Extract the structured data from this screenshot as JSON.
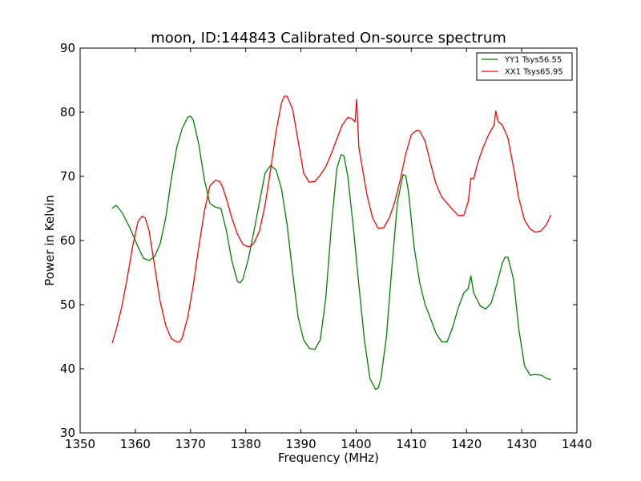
{
  "chart_data": {
    "type": "line",
    "title": "moon, ID:144843 Calibrated On-source spectrum",
    "xlabel": "Frequency (MHz)",
    "ylabel": "Power in Kelvin",
    "xlim": [
      1350,
      1440
    ],
    "ylim": [
      30,
      90
    ],
    "xticks": [
      1350,
      1360,
      1370,
      1380,
      1390,
      1400,
      1410,
      1420,
      1430,
      1440
    ],
    "yticks": [
      30,
      40,
      50,
      60,
      70,
      80,
      90
    ],
    "legend_position": "top-right",
    "series": [
      {
        "name": "YY1 Tsys56.55",
        "color": "#008000",
        "x": [
          1355.8,
          1356.5,
          1357.5,
          1359,
          1360.5,
          1361.5,
          1362.5,
          1363.5,
          1364.5,
          1365.5,
          1366.5,
          1367.5,
          1368.5,
          1369.5,
          1370,
          1370.5,
          1371.5,
          1372.5,
          1373.5,
          1374.5,
          1375.5,
          1376.5,
          1377.5,
          1378.5,
          1379,
          1379.5,
          1380.5,
          1381.5,
          1382.5,
          1383.5,
          1384.5,
          1385.5,
          1386.5,
          1387.5,
          1388.5,
          1389.5,
          1390.5,
          1391.5,
          1392.5,
          1393.5,
          1394.5,
          1395.5,
          1396.5,
          1397.3,
          1397.8,
          1398.5,
          1399.5,
          1400.5,
          1401.5,
          1402.5,
          1403.5,
          1404,
          1404.5,
          1405.5,
          1406.5,
          1407.5,
          1408.5,
          1409,
          1409.5,
          1410.5,
          1411.5,
          1412.5,
          1413.5,
          1414.5,
          1415.5,
          1416.5,
          1417.5,
          1418.5,
          1419.5,
          1420.3,
          1420.8,
          1421.3,
          1422.5,
          1423.5,
          1424.5,
          1425.5,
          1426.5,
          1427,
          1427.5,
          1428.5,
          1429.5,
          1430.5,
          1431.5,
          1432.5,
          1433.5,
          1434.5,
          1435.3
        ],
        "values": [
          65,
          65.5,
          64.5,
          62,
          59,
          57.2,
          56.9,
          57.5,
          59.5,
          63.5,
          69.5,
          74.5,
          77.5,
          79.2,
          79.4,
          78.8,
          75,
          69.5,
          65.8,
          65.2,
          65,
          61.5,
          56.8,
          53.6,
          53.4,
          54,
          57.2,
          61.5,
          66,
          70.5,
          71.7,
          71,
          68,
          62.5,
          55,
          48,
          44.5,
          43.2,
          43,
          44.5,
          51,
          62,
          71.2,
          73.4,
          73.2,
          70,
          62,
          53,
          44.5,
          38.5,
          36.8,
          37,
          38.5,
          45,
          56,
          66,
          70.3,
          70.1,
          67.5,
          59,
          53.5,
          50,
          47.8,
          45.5,
          44.2,
          44.2,
          46.5,
          49.5,
          51.8,
          52.5,
          54.5,
          51.8,
          49.8,
          49.3,
          50.3,
          53.2,
          56.5,
          57.4,
          57.4,
          54,
          46,
          40.5,
          39,
          39.1,
          39,
          38.5,
          38.3
        ]
      },
      {
        "name": "XX1 Tsys65.95",
        "color": "#ff0000",
        "x": [
          1355.8,
          1356.5,
          1357.5,
          1358.5,
          1359.5,
          1360.5,
          1361.3,
          1361.8,
          1362.5,
          1363.5,
          1364.5,
          1365.5,
          1366.5,
          1367.5,
          1368,
          1368.5,
          1369.5,
          1370.5,
          1371.5,
          1372.5,
          1373.5,
          1374.5,
          1375.3,
          1375.8,
          1376.5,
          1377.5,
          1378.5,
          1379.5,
          1380.5,
          1381,
          1381.5,
          1382.5,
          1383.5,
          1384.5,
          1385.5,
          1386.5,
          1387,
          1387.5,
          1388.5,
          1389.5,
          1390.5,
          1391.5,
          1392.5,
          1393.5,
          1394.5,
          1395.5,
          1396.5,
          1397.5,
          1398.5,
          1399.2,
          1399.8,
          1400.1,
          1400.5,
          1401,
          1402,
          1403,
          1404,
          1405,
          1406,
          1407,
          1408,
          1409,
          1410,
          1411,
          1411.5,
          1412.5,
          1413.5,
          1414.5,
          1415.5,
          1416.5,
          1417.5,
          1418.5,
          1419.5,
          1420.3,
          1420.8,
          1421.3,
          1422,
          1423,
          1424,
          1425,
          1425.3,
          1425.7,
          1426.5,
          1427.5,
          1428.5,
          1429.5,
          1430.5,
          1431.5,
          1432.5,
          1433.5,
          1434.5,
          1435.3
        ],
        "values": [
          44,
          46,
          49.5,
          54,
          59,
          63,
          63.8,
          63.5,
          61.5,
          56,
          50.5,
          46.8,
          44.7,
          44.2,
          44.2,
          44.8,
          48,
          53,
          59,
          64.5,
          68.5,
          69.4,
          69.2,
          68.4,
          66.5,
          63.5,
          61,
          59.4,
          59,
          59.2,
          59.6,
          61.5,
          65.5,
          71,
          77,
          81.5,
          82.5,
          82.5,
          80.5,
          75.5,
          70.5,
          69.1,
          69.2,
          70.2,
          71.5,
          73.5,
          75.8,
          78,
          79.2,
          79,
          78.5,
          82,
          74.5,
          72,
          67,
          63.5,
          61.9,
          62,
          63.5,
          66,
          69.5,
          73.5,
          76.5,
          77.2,
          77.1,
          75.5,
          72,
          68.8,
          66.8,
          65.8,
          64.8,
          63.9,
          63.9,
          66,
          69.7,
          69.6,
          72,
          74.5,
          76.5,
          78,
          80.2,
          78.6,
          78,
          76,
          71.5,
          66.5,
          63.2,
          61.8,
          61.3,
          61.5,
          62.5,
          64
        ]
      }
    ]
  }
}
